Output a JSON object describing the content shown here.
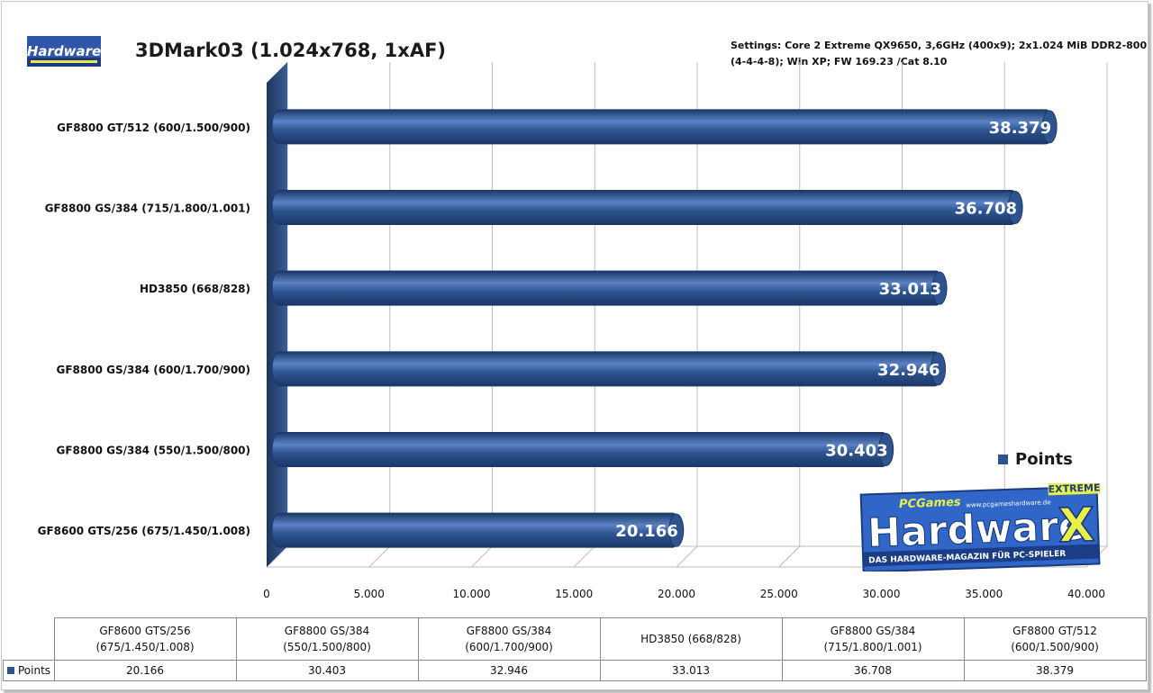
{
  "title": "3DMark03 (1.024x768, 1xAF)",
  "settings": "Settings: Core 2 Extreme QX9650, 3,6GHz (400x9); 2x1.024 MiB DDR2-800\n(4-4-4-8); Win XP; FW 169.23 /Cat 8.10",
  "logo_small_text": "Hardware",
  "logo_big": {
    "brand": "Hardware",
    "prefix": "PCGames",
    "url": "www.pcgameshardware.de",
    "badge": "EXTREME",
    "x": "X",
    "tagline": "DAS HARDWARE-MAGAZIN FÜR PC-SPIELER"
  },
  "colors": {
    "bar": "#2e5490",
    "bar_light": "#5b82c4",
    "bar_dark": "#1b3768",
    "wall": "#2a4a7c"
  },
  "chart_data": {
    "type": "bar",
    "orientation": "horizontal",
    "categories": [
      "GF8800 GT/512  (600/1.500/900)",
      "GF8800 GS/384  (715/1.800/1.001)",
      "HD3850  (668/828)",
      "GF8800 GS/384  (600/1.700/900)",
      "GF8800 GS/384  (550/1.500/800)",
      "GF8600 GTS/256  (675/1.450/1.008)"
    ],
    "series": [
      {
        "name": "Points",
        "values": [
          38379,
          36708,
          33013,
          32946,
          30403,
          20166
        ],
        "value_labels": [
          "38.379",
          "36.708",
          "33.013",
          "32.946",
          "30.403",
          "20.166"
        ]
      }
    ],
    "xlim": [
      0,
      40000
    ],
    "xticks": [
      0,
      5000,
      10000,
      15000,
      20000,
      25000,
      30000,
      35000,
      40000
    ],
    "xtick_labels": [
      "0",
      "5.000",
      "10.000",
      "15.000",
      "20.000",
      "25.000",
      "30.000",
      "35.000",
      "40.000"
    ],
    "grid": true,
    "legend": "right"
  },
  "table": {
    "series_label": "Points",
    "columns": [
      {
        "line1": "GF8600 GTS/256",
        "line2": "(675/1.450/1.008)",
        "value": "20.166"
      },
      {
        "line1": "GF8800 GS/384",
        "line2": "(550/1.500/800)",
        "value": "30.403"
      },
      {
        "line1": "GF8800 GS/384",
        "line2": "(600/1.700/900)",
        "value": "32.946"
      },
      {
        "line1": "HD3850 (668/828)",
        "line2": "",
        "value": "33.013"
      },
      {
        "line1": "GF8800 GS/384",
        "line2": "(715/1.800/1.001)",
        "value": "36.708"
      },
      {
        "line1": "GF8800 GT/512",
        "line2": "(600/1.500/900)",
        "value": "38.379"
      }
    ]
  }
}
